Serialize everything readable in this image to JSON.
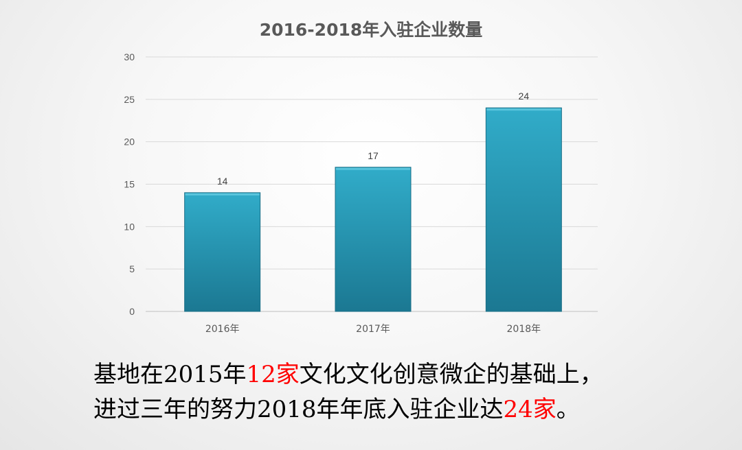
{
  "chart_data": {
    "type": "bar",
    "title": "2016-2018年入驻企业数量",
    "categories": [
      "2016年",
      "2017年",
      "2018年"
    ],
    "values": [
      14,
      17,
      24
    ],
    "ylim": [
      0,
      30
    ],
    "yticks": [
      0,
      5,
      10,
      15,
      20,
      25,
      30
    ],
    "grid": true,
    "data_labels": true,
    "xlabel": "",
    "ylabel": "",
    "bar_color": "#2a9dbb"
  },
  "caption": {
    "line1": {
      "part1": "基地在2015年",
      "highlight1": "12家",
      "part2": "文化文化创意微企的基础上，"
    },
    "line2": {
      "part1": "进过三年的努力2018年年底入驻企业达",
      "highlight2": "24家",
      "part2": "。"
    },
    "highlight_color": "#ff0000"
  }
}
